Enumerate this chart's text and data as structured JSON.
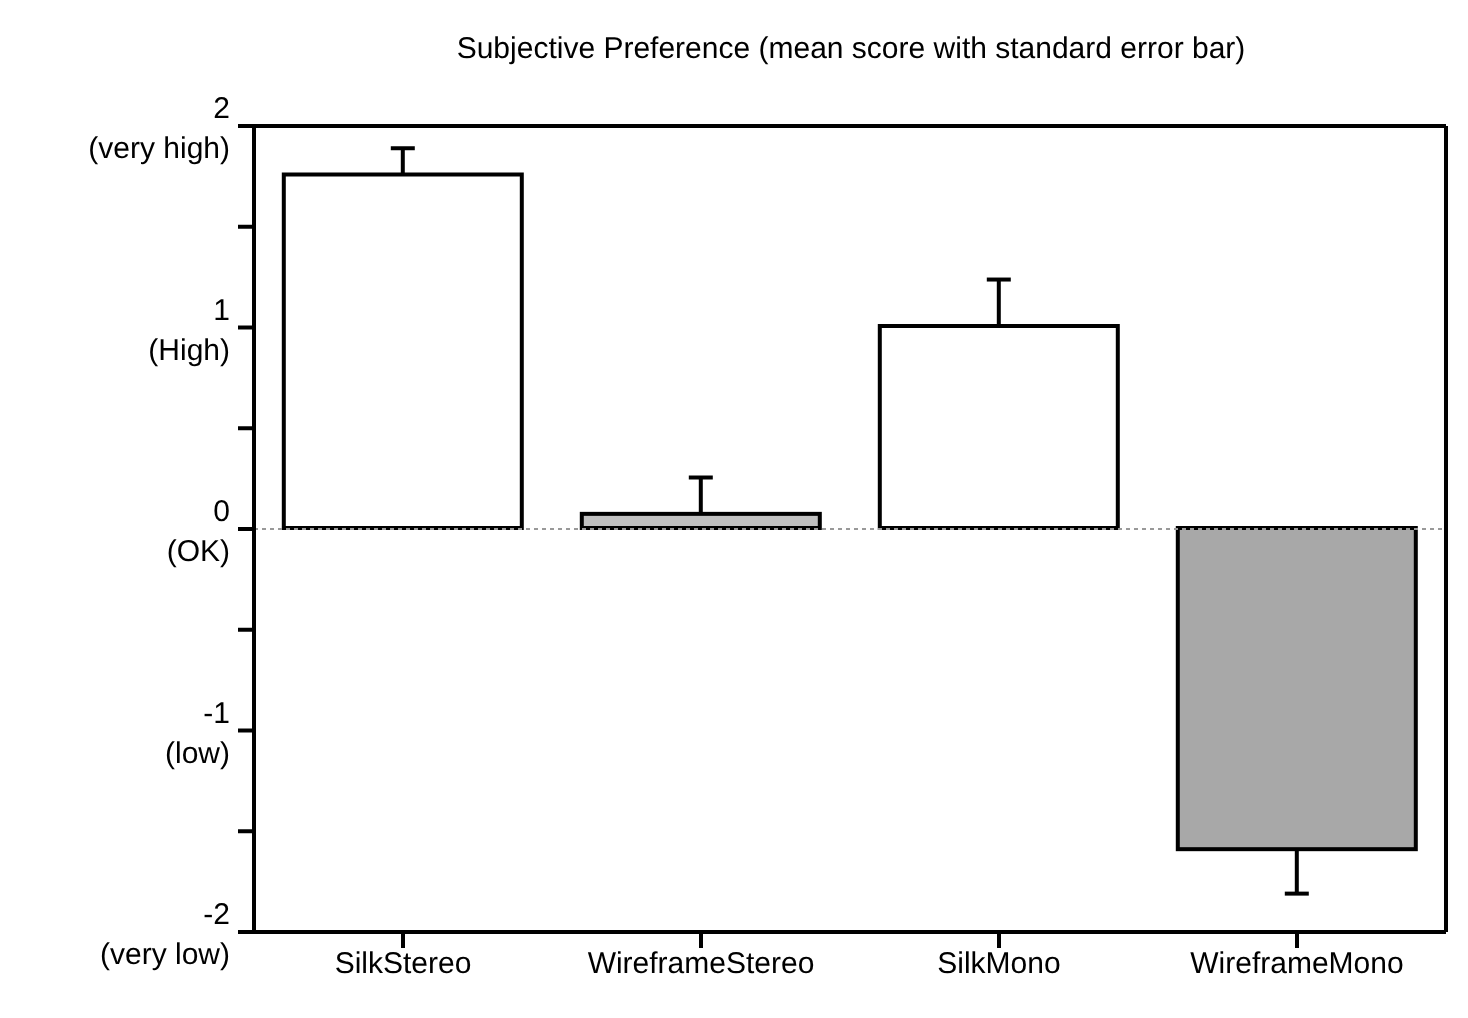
{
  "chart_data": {
    "type": "bar",
    "title": "Subjective Preference (mean score with standard error bar)",
    "categories": [
      "SilkStereo",
      "WireframeStereo",
      "SilkMono",
      "WireframeMono"
    ],
    "values": [
      1.75,
      0.07,
      1.0,
      -1.59
    ],
    "errors": [
      0.13,
      0.18,
      0.23,
      0.22
    ],
    "colors": [
      "#ffffff",
      "#c0c0c0",
      "#ffffff",
      "#a8a8a8"
    ],
    "ylim": [
      -2,
      2
    ],
    "yticks": [
      {
        "value": 2,
        "label": "2\n(very high)"
      },
      {
        "value": 1.5,
        "label": null
      },
      {
        "value": 1,
        "label": "1\n(High)"
      },
      {
        "value": 0.5,
        "label": null
      },
      {
        "value": 0,
        "label": "0\n(OK)"
      },
      {
        "value": -0.5,
        "label": null
      },
      {
        "value": -1,
        "label": "-1\n(low)"
      },
      {
        "value": -1.5,
        "label": null
      },
      {
        "value": -2,
        "label": "-2\n(very low)"
      }
    ],
    "ref_lines": [
      {
        "axis": "y",
        "value": 0,
        "color": "#999999",
        "line_style": "dotted"
      }
    ],
    "grid": false
  }
}
